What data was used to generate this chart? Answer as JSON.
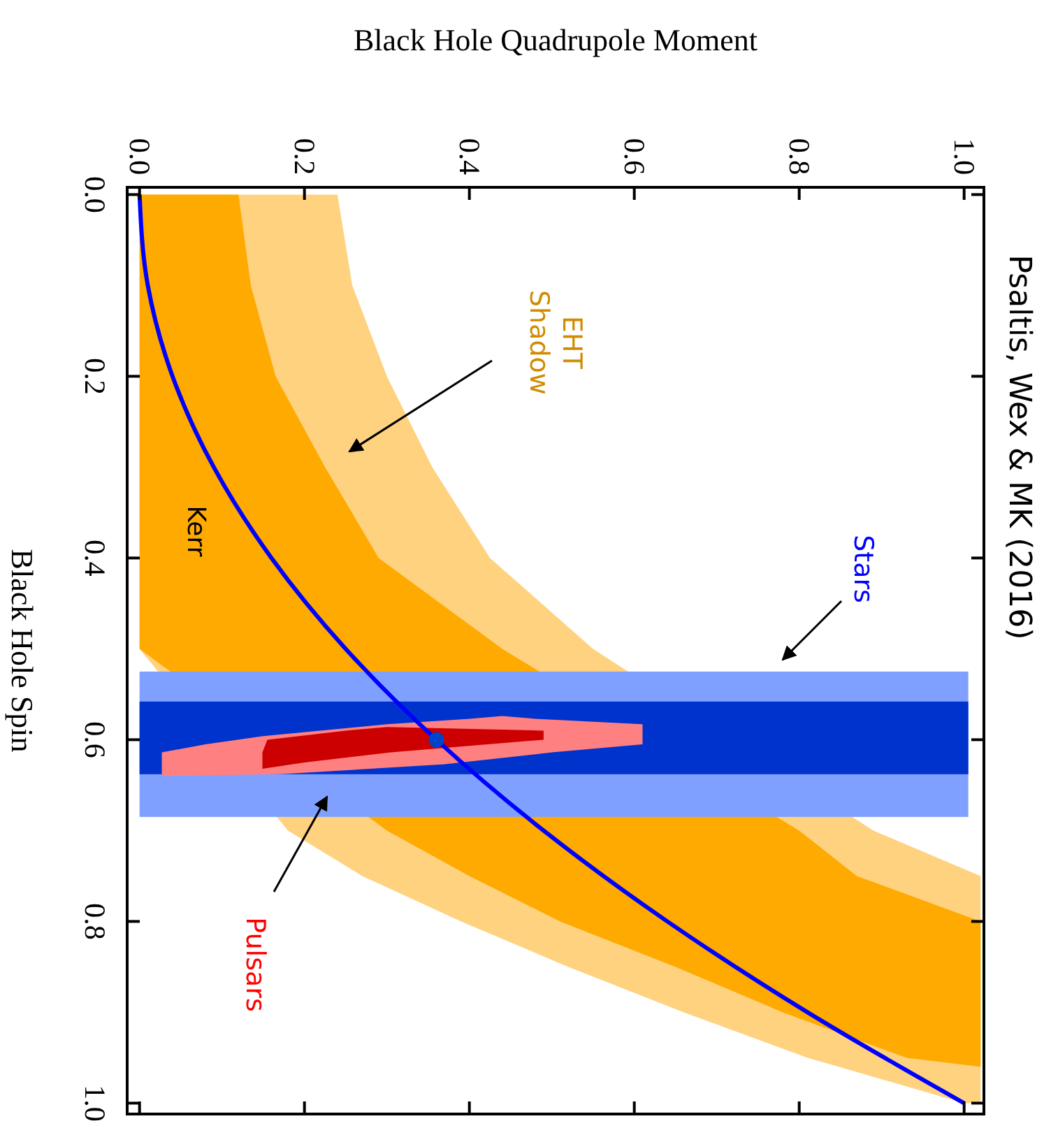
{
  "chart_data": {
    "type": "area",
    "orientation": "horizontal",
    "xlabel": "Black Hole Quadrupole Moment",
    "ylabel": "Black Hole Spin",
    "xlim": [
      -0.015,
      1.024
    ],
    "ylim": [
      1.012,
      -0.008
    ],
    "xticks": [
      {
        "value": 0,
        "label": "0.0"
      },
      0.2,
      0.4,
      0.6,
      0.8,
      {
        "value": 1,
        "label": "1.0"
      }
    ],
    "yticks": [
      {
        "value": 0,
        "label": "0.0"
      },
      0.2,
      0.4,
      0.6,
      0.8,
      {
        "value": 1,
        "label": "1.0"
      }
    ],
    "bands": [
      {
        "axis": "y",
        "from": 0.525,
        "to": 0.685,
        "color": "#80a0ff"
      },
      {
        "axis": "y",
        "from": 0.558,
        "to": 0.638,
        "color": "#0033cc"
      }
    ],
    "series": [
      {
        "color": "#ffd280",
        "x": [
          0,
          0.1,
          0.2,
          0.3,
          0.4,
          0.5,
          0.7,
          0.75,
          0.8,
          0.85,
          0.9,
          0.95,
          1.0
        ],
        "values": [
          null,
          null,
          null,
          null,
          null,
          null,
          null,
          null,
          null,
          null,
          null,
          null,
          null
        ],
        "lower": [
          0,
          0,
          0,
          0,
          0,
          0,
          0.18,
          0.27,
          0.39,
          0.52,
          0.66,
          0.81,
          1.0
        ],
        "upper": [
          0.24,
          0.258,
          0.3,
          0.355,
          0.425,
          0.55,
          0.89,
          1.02,
          1.02,
          1.02,
          1.02,
          1.02,
          1.02
        ]
      },
      {
        "color": "#ffaa00",
        "x": [
          0,
          0.1,
          0.2,
          0.3,
          0.4,
          0.5,
          0.7,
          0.75,
          0.8,
          0.85,
          0.9,
          0.95,
          0.96
        ],
        "values": [
          null,
          null,
          null,
          null,
          null,
          null,
          null,
          null,
          null,
          null,
          null,
          null,
          null
        ],
        "lower": [
          0,
          0,
          0,
          0,
          0,
          0,
          0.3,
          0.4,
          0.51,
          0.65,
          0.78,
          0.93,
          1.02
        ],
        "upper": [
          0.12,
          0.135,
          0.165,
          0.225,
          0.29,
          0.44,
          0.8,
          0.87,
          1.02,
          1.02,
          1.02,
          1.02,
          1.02
        ]
      },
      {
        "color": "#ff8080",
        "x": [
          0.574,
          0.577,
          0.583,
          0.596,
          0.605,
          0.614,
          0.627,
          0.638,
          0.64
        ],
        "values": [
          null,
          null,
          null,
          null,
          null,
          null,
          null,
          null,
          null
        ],
        "lower": [
          0.44,
          0.4,
          0.3,
          0.15,
          0.08,
          0.027,
          0.027,
          0.027,
          0.03
        ],
        "upper": [
          0.44,
          0.48,
          0.61,
          0.61,
          0.61,
          0.5,
          0.37,
          0.17,
          0.03
        ]
      },
      {
        "color": "#cc0000",
        "x": [
          0.586,
          0.59,
          0.6,
          0.614,
          0.625,
          0.632
        ],
        "values": [
          null,
          null,
          null,
          null,
          null,
          null
        ],
        "lower": [
          0.3,
          0.25,
          0.155,
          0.149,
          0.149,
          0.149
        ],
        "upper": [
          0.3,
          0.49,
          0.49,
          0.305,
          0.2,
          0.149
        ]
      },
      {
        "type": "line",
        "name": "Kerr",
        "color": "#0000ff",
        "marker": "none",
        "x": [
          0,
          0.1,
          0.2,
          0.3,
          0.4,
          0.5,
          0.6,
          0.7,
          0.8,
          0.9,
          1.0
        ],
        "values": [
          0,
          0.01,
          0.04,
          0.09,
          0.16,
          0.25,
          0.36,
          0.49,
          0.64,
          0.81,
          1.0
        ]
      },
      {
        "type": "scatter",
        "color": "#0044cc",
        "marker": "circle",
        "x": [
          0.6
        ],
        "values": [
          0.36
        ]
      }
    ],
    "annotations": [
      "Psaltis, Wex & MK (2016)",
      "EHT Shadow",
      "Stars",
      "Pulsars"
    ]
  }
}
